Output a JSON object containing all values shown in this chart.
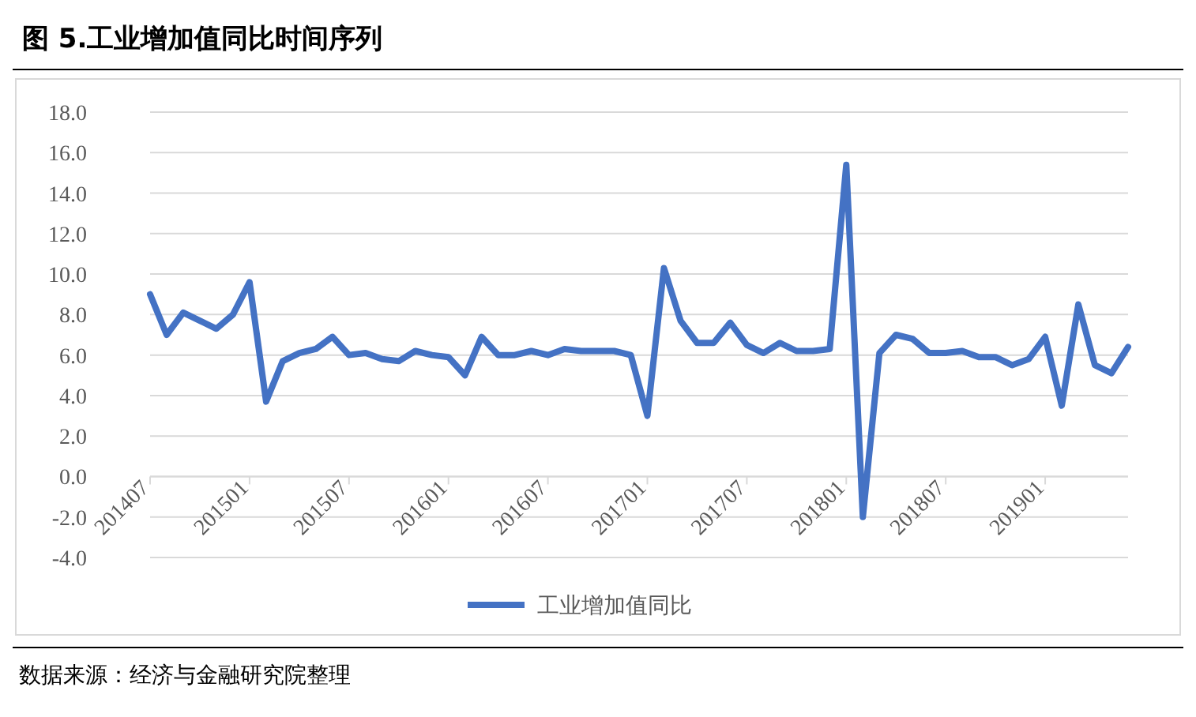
{
  "chart_data": {
    "type": "line",
    "title": "图  5.工业增加值同比时间序列",
    "categories": [
      "201407",
      null,
      null,
      null,
      null,
      null,
      "201501",
      null,
      null,
      null,
      null,
      null,
      "201507",
      null,
      null,
      null,
      null,
      null,
      "201601",
      null,
      null,
      null,
      null,
      null,
      "201607",
      null,
      null,
      null,
      null,
      null,
      "201701",
      null,
      null,
      null,
      null,
      null,
      "201707",
      null,
      null,
      null,
      null,
      null,
      "201801",
      null,
      null,
      null,
      null,
      null,
      "201807",
      null,
      null,
      null,
      null,
      null,
      "201901",
      null,
      null,
      null,
      null,
      null
    ],
    "series": [
      {
        "name": "工业增加值同比",
        "color": "#4472c4",
        "values": [
          9.0,
          7.0,
          8.1,
          7.7,
          7.3,
          8.0,
          9.6,
          3.7,
          5.7,
          6.1,
          6.3,
          6.9,
          6.0,
          6.1,
          5.8,
          5.7,
          6.2,
          6.0,
          5.9,
          5.0,
          6.9,
          6.0,
          6.0,
          6.2,
          6.0,
          6.3,
          6.2,
          6.2,
          6.2,
          6.0,
          3.0,
          10.3,
          7.7,
          6.6,
          6.6,
          7.6,
          6.5,
          6.1,
          6.6,
          6.2,
          6.2,
          6.3,
          15.4,
          -2.0,
          6.1,
          7.0,
          6.8,
          6.1,
          6.1,
          6.2,
          5.9,
          5.9,
          5.5,
          5.8,
          6.9,
          3.5,
          8.5,
          5.5,
          5.1,
          6.4
        ]
      }
    ],
    "ylim": [
      -4,
      18
    ],
    "yticks": [
      {
        "value": -4,
        "label": "-4.0"
      },
      {
        "value": -2,
        "label": "-2.0"
      },
      {
        "value": 0,
        "label": "0.0"
      },
      {
        "value": 2,
        "label": "2.0"
      },
      {
        "value": 4,
        "label": "4.0"
      },
      {
        "value": 6,
        "label": "6.0"
      },
      {
        "value": 8,
        "label": "8.0"
      },
      {
        "value": 10,
        "label": "10.0"
      },
      {
        "value": 12,
        "label": "12.0"
      },
      {
        "value": 14,
        "label": "14.0"
      },
      {
        "value": 16,
        "label": "16.0"
      },
      {
        "value": 18,
        "label": "18.0"
      }
    ],
    "grid": "y",
    "legend": "bottom",
    "marker": "none",
    "line_style": "solid",
    "annotations": [
      "数据来源：经济与金融研究院整理"
    ]
  }
}
